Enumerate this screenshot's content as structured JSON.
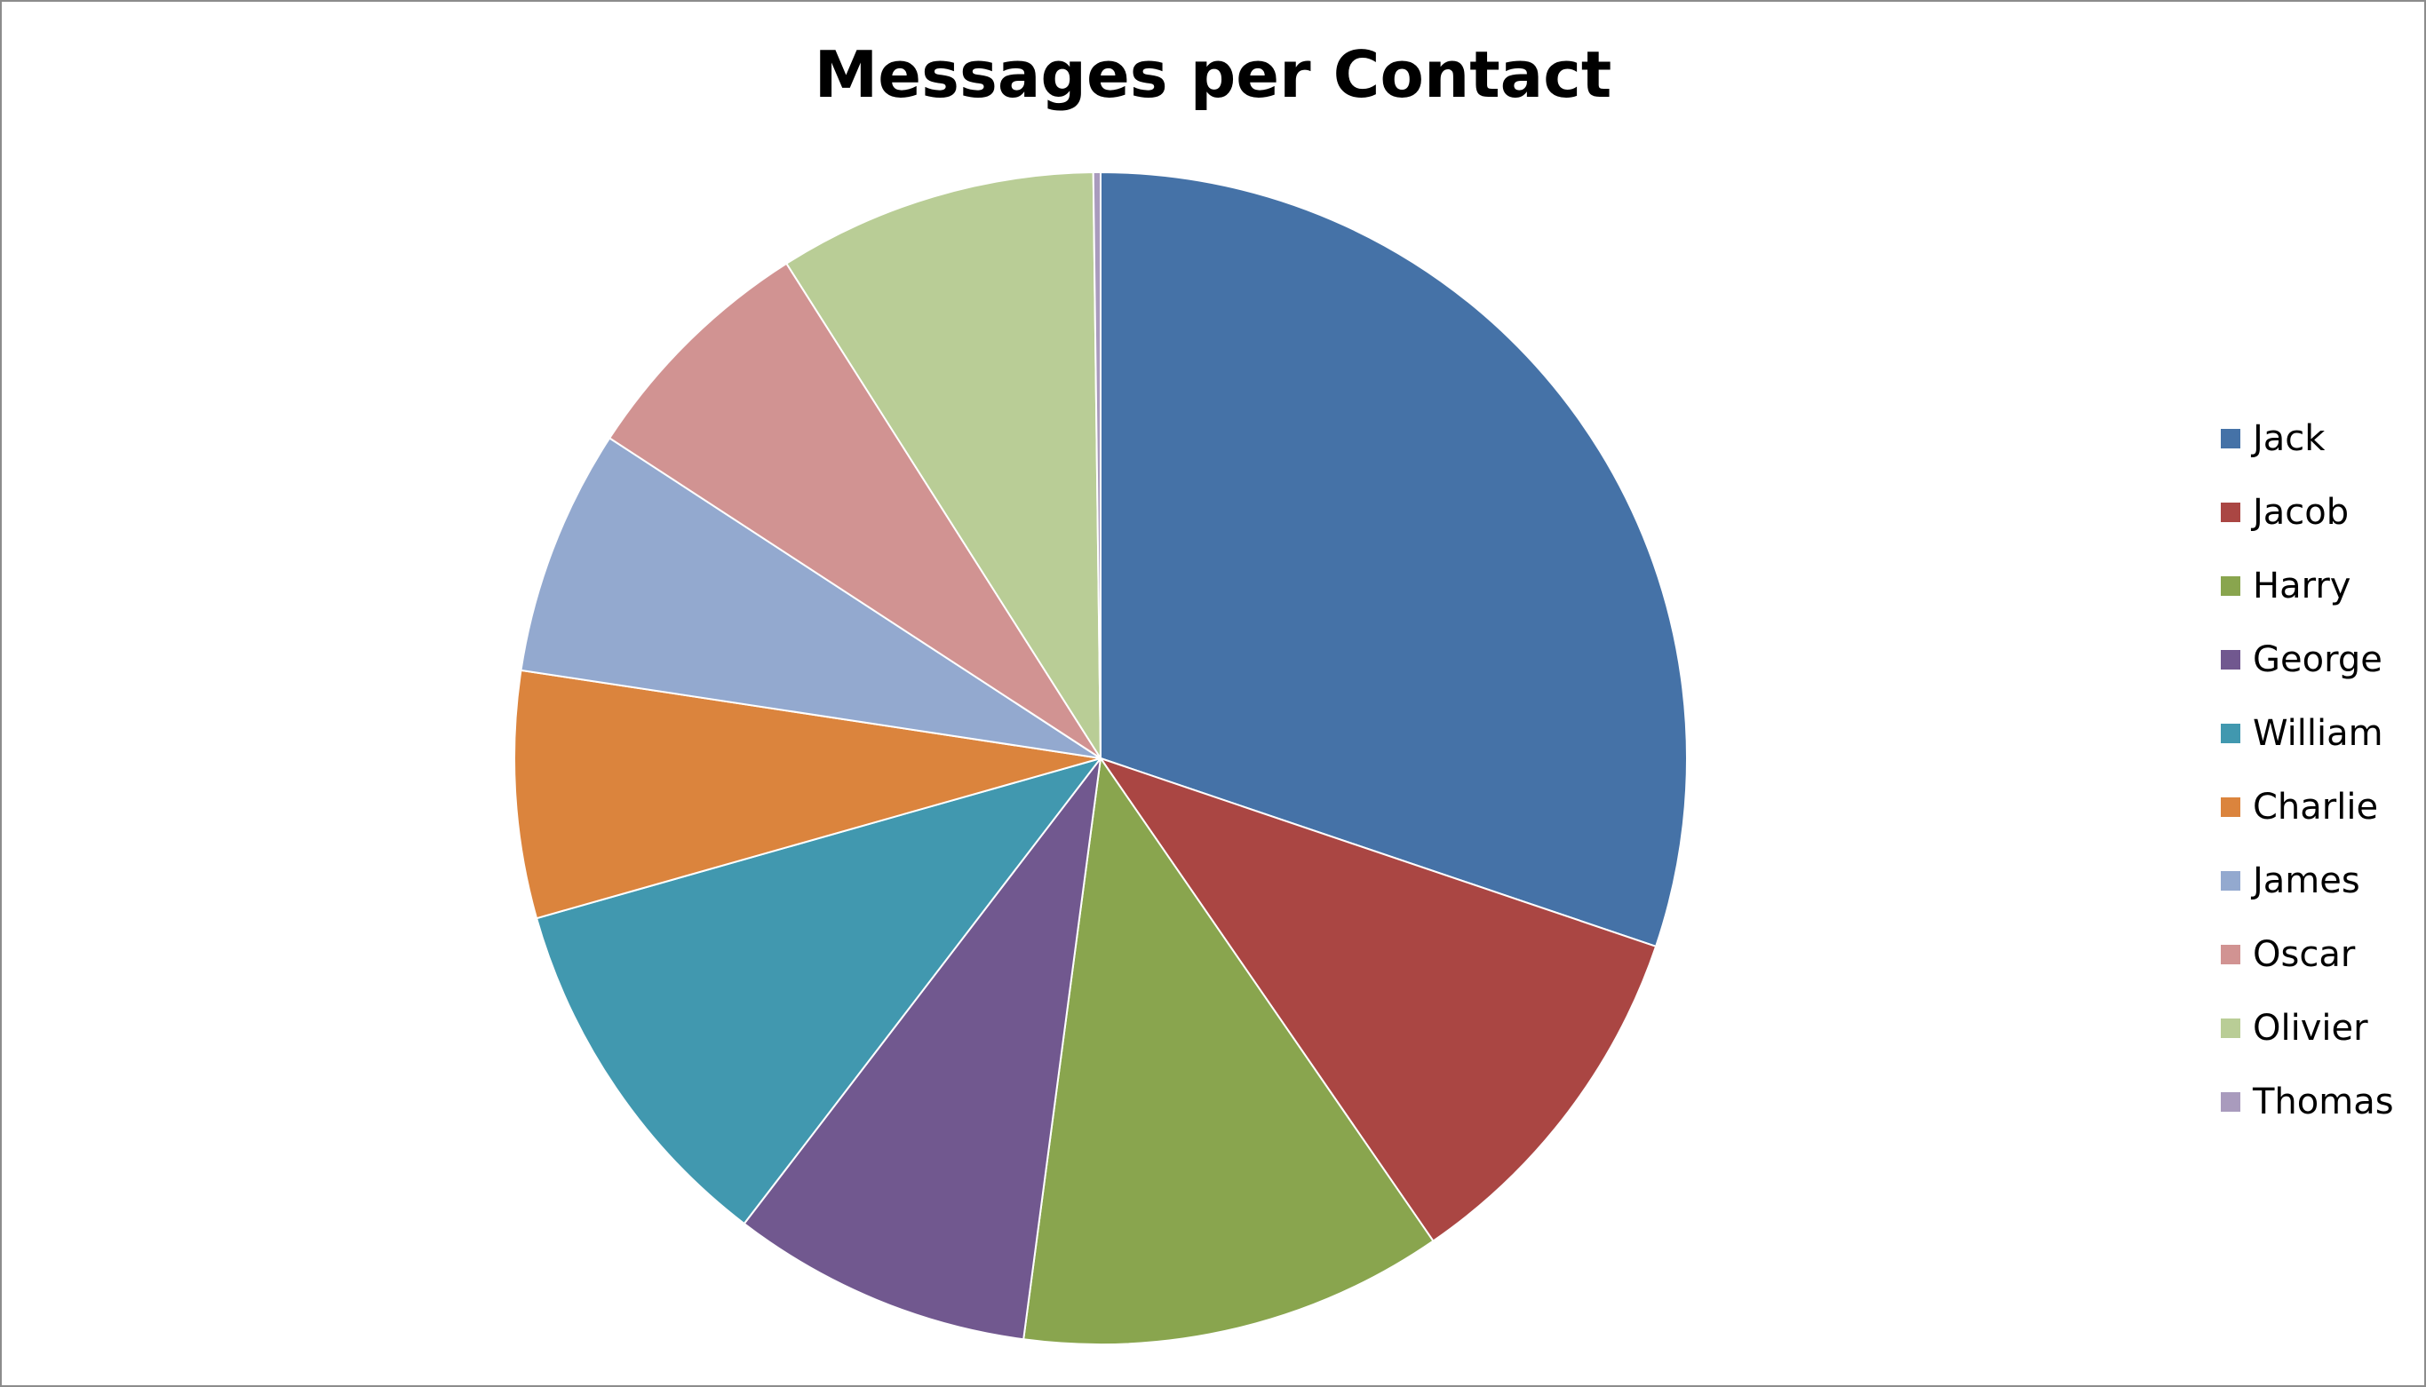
{
  "chart_data": {
    "type": "pie",
    "title": "Messages per Contact",
    "legend_position": "right",
    "start_angle_deg": 0,
    "direction": "clockwise",
    "slices": [
      {
        "label": "Jack",
        "value": 30.2,
        "color": "#4572a7"
      },
      {
        "label": "Jacob",
        "value": 10.2,
        "color": "#aa4643"
      },
      {
        "label": "Harry",
        "value": 11.7,
        "color": "#89a54e"
      },
      {
        "label": "George",
        "value": 8.3,
        "color": "#71588f"
      },
      {
        "label": "William",
        "value": 10.2,
        "color": "#4198af"
      },
      {
        "label": "Charlie",
        "value": 6.8,
        "color": "#db843d"
      },
      {
        "label": "James",
        "value": 6.8,
        "color": "#93a9cf"
      },
      {
        "label": "Oscar",
        "value": 6.8,
        "color": "#d19392"
      },
      {
        "label": "Olivier",
        "value": 8.8,
        "color": "#b9cd96"
      },
      {
        "label": "Thomas",
        "value": 0.2,
        "color": "#a99bbd"
      }
    ]
  }
}
